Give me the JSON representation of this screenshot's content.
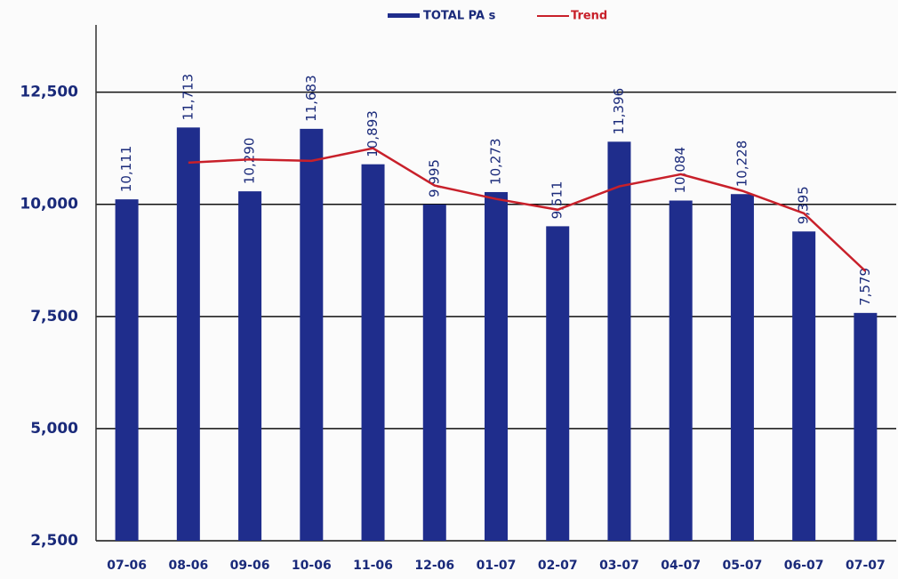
{
  "chart_data": {
    "type": "bar",
    "categories": [
      "07-06",
      "08-06",
      "09-06",
      "10-06",
      "11-06",
      "12-06",
      "01-07",
      "02-07",
      "03-07",
      "04-07",
      "05-07",
      "06-07",
      "07-07"
    ],
    "series": [
      {
        "name": "TOTAL PA s",
        "color": "#1f2d8c",
        "values": [
          10111,
          11713,
          10290,
          11683,
          10893,
          9995,
          10273,
          9511,
          11396,
          10084,
          10228,
          9395,
          7579
        ],
        "value_labels": [
          "10,111",
          "11,713",
          "10,290",
          "11,683",
          "10,893",
          "9,995",
          "10,273",
          "9,511",
          "11,396",
          "10,084",
          "10,228",
          "9,395",
          "7,579"
        ]
      },
      {
        "name": "Trend",
        "type": "line",
        "color": "#c8202a",
        "values": [
          null,
          10930,
          11000,
          10970,
          11250,
          10420,
          10120,
          9880,
          10400,
          10670,
          10300,
          9800,
          8510
        ]
      }
    ],
    "ylim": [
      2500,
      14000
    ],
    "yticks": [
      {
        "value": 2500,
        "label": "2,500"
      },
      {
        "value": 5000,
        "label": "5,000"
      },
      {
        "value": 7500,
        "label": "7,500"
      },
      {
        "value": 10000,
        "label": "10,000"
      },
      {
        "value": 12500,
        "label": "12,500"
      }
    ],
    "grid": true,
    "legend": "top"
  }
}
